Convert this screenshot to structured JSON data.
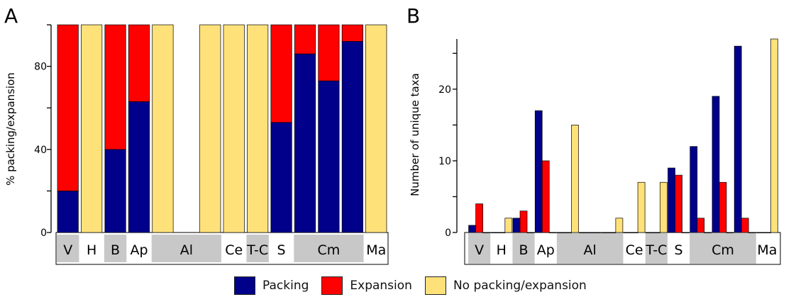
{
  "colors": {
    "packing": "#00008b",
    "expansion": "#ff0000",
    "none": "#ffe17a"
  },
  "legend": [
    {
      "key": "packing",
      "label": "Packing"
    },
    {
      "key": "expansion",
      "label": "Expansion"
    },
    {
      "key": "none",
      "label": "No packing/expansion"
    }
  ],
  "chart_data": [
    {
      "panel_label": "A",
      "type": "bar",
      "stacked": true,
      "ylabel": "% packing/expansion",
      "ylim": [
        0,
        100
      ],
      "yticks": [
        0,
        40,
        80
      ],
      "groups": [
        {
          "label": "V",
          "shaded": true,
          "span": [
            1,
            1
          ]
        },
        {
          "label": "H",
          "shaded": false,
          "span": [
            2,
            2
          ]
        },
        {
          "label": "B",
          "shaded": true,
          "span": [
            3,
            3
          ]
        },
        {
          "label": "Ap",
          "shaded": false,
          "span": [
            4,
            4
          ]
        },
        {
          "label": "Al",
          "shaded": true,
          "span": [
            5,
            7
          ]
        },
        {
          "label": "Ce",
          "shaded": false,
          "span": [
            8,
            8
          ]
        },
        {
          "label": "T-C",
          "shaded": true,
          "span": [
            9,
            9
          ]
        },
        {
          "label": "S",
          "shaded": false,
          "span": [
            10,
            10
          ]
        },
        {
          "label": "Cm",
          "shaded": true,
          "span": [
            11,
            13
          ]
        },
        {
          "label": "Ma",
          "shaded": false,
          "span": [
            14,
            14
          ]
        }
      ],
      "slots": 14,
      "series": [
        {
          "name": "Packing",
          "key": "packing",
          "values": [
            20,
            0,
            40,
            63,
            0,
            null,
            0,
            0,
            0,
            53,
            86,
            73,
            92,
            0
          ]
        },
        {
          "name": "Expansion",
          "key": "expansion",
          "values": [
            80,
            0,
            60,
            37,
            0,
            null,
            0,
            0,
            0,
            47,
            14,
            27,
            8,
            0
          ]
        },
        {
          "name": "No packing/expansion",
          "key": "none",
          "values": [
            0,
            100,
            0,
            0,
            100,
            null,
            100,
            100,
            100,
            0,
            0,
            0,
            0,
            100
          ]
        }
      ]
    },
    {
      "panel_label": "B",
      "type": "bar",
      "stacked": false,
      "ylabel": "Number of unique taxa",
      "ylim": [
        0,
        27
      ],
      "yticks": [
        0,
        10,
        20
      ],
      "groups": [
        {
          "label": "V",
          "shaded": true,
          "span": [
            1,
            1
          ]
        },
        {
          "label": "H",
          "shaded": false,
          "span": [
            2,
            2
          ]
        },
        {
          "label": "B",
          "shaded": true,
          "span": [
            3,
            3
          ]
        },
        {
          "label": "Ap",
          "shaded": false,
          "span": [
            4,
            4
          ]
        },
        {
          "label": "Al",
          "shaded": true,
          "span": [
            5,
            7
          ]
        },
        {
          "label": "Ce",
          "shaded": false,
          "span": [
            8,
            8
          ]
        },
        {
          "label": "T-C",
          "shaded": true,
          "span": [
            9,
            9
          ]
        },
        {
          "label": "S",
          "shaded": false,
          "span": [
            10,
            10
          ]
        },
        {
          "label": "Cm",
          "shaded": true,
          "span": [
            11,
            13
          ]
        },
        {
          "label": "Ma",
          "shaded": false,
          "span": [
            14,
            14
          ]
        }
      ],
      "slots": 14,
      "series": [
        {
          "name": "Packing",
          "key": "packing",
          "values": [
            1,
            0,
            2,
            17,
            0,
            0,
            0,
            0,
            0,
            9,
            12,
            19,
            26,
            0
          ]
        },
        {
          "name": "Expansion",
          "key": "expansion",
          "values": [
            4,
            0,
            3,
            10,
            0,
            0,
            0,
            0,
            0,
            8,
            2,
            7,
            2,
            0
          ]
        },
        {
          "name": "No packing/expansion",
          "key": "none",
          "values": [
            0,
            2,
            0,
            0,
            15,
            0,
            2,
            7,
            7,
            0,
            0,
            0,
            0,
            27
          ]
        }
      ]
    }
  ]
}
